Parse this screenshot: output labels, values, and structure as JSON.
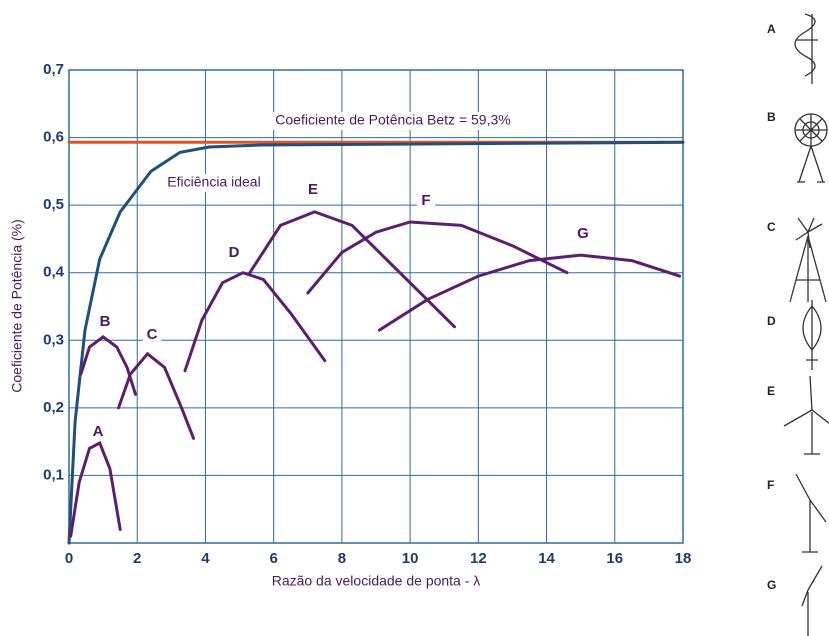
{
  "chart_data": {
    "type": "line",
    "xlabel": "Razão  da velocidade de ponta - λ",
    "ylabel": "Coeficiente de Potência (%)",
    "annotations": [
      "Coeficiente de Potência Betz = 59,3%",
      "Eficiência ideal"
    ],
    "xlim": [
      0,
      18
    ],
    "xticks": [
      0,
      2,
      4,
      6,
      8,
      10,
      12,
      14,
      16,
      18
    ],
    "ylim": [
      0,
      0.7
    ],
    "yticks": [
      {
        "value": 0.1,
        "label": "0,1"
      },
      {
        "value": 0.2,
        "label": "0,2"
      },
      {
        "value": 0.3,
        "label": "0,3"
      },
      {
        "value": 0.4,
        "label": "0,4"
      },
      {
        "value": 0.5,
        "label": "0,5"
      },
      {
        "value": 0.6,
        "label": "0,6"
      },
      {
        "value": 0.7,
        "label": "0,7"
      }
    ],
    "grid": true,
    "series": [
      {
        "color": "#e8531f",
        "x": [
          0,
          18
        ],
        "values": [
          0.593,
          0.593
        ]
      },
      {
        "color": "#1f4f7c",
        "x": [
          0,
          0.18,
          0.47,
          0.9,
          1.5,
          2.4,
          3.25,
          4.1,
          5.6,
          18
        ],
        "values": [
          0,
          0.18,
          0.315,
          0.42,
          0.49,
          0.55,
          0.578,
          0.586,
          0.589,
          0.593
        ]
      },
      {
        "name": "A",
        "color": "#5a1f6e",
        "x": [
          0.05,
          0.3,
          0.6,
          0.9,
          1.2,
          1.5
        ],
        "values": [
          0.01,
          0.09,
          0.14,
          0.148,
          0.11,
          0.02
        ]
      },
      {
        "name": "B",
        "color": "#5a1f6e",
        "x": [
          0.35,
          0.6,
          1.0,
          1.4,
          1.7,
          1.95
        ],
        "values": [
          0.25,
          0.29,
          0.305,
          0.29,
          0.26,
          0.22
        ]
      },
      {
        "name": "C",
        "color": "#5a1f6e",
        "x": [
          1.45,
          1.8,
          2.3,
          2.8,
          3.3,
          3.65
        ],
        "values": [
          0.2,
          0.25,
          0.28,
          0.26,
          0.2,
          0.155
        ]
      },
      {
        "name": "D",
        "color": "#5a1f6e",
        "x": [
          3.4,
          3.9,
          4.5,
          5.1,
          5.7,
          6.5,
          7.5
        ],
        "values": [
          0.255,
          0.33,
          0.385,
          0.4,
          0.39,
          0.34,
          0.27
        ]
      },
      {
        "name": "E",
        "color": "#5a1f6e",
        "x": [
          5.3,
          6.2,
          7.2,
          8.3,
          9.5,
          10.5,
          11.3
        ],
        "values": [
          0.4,
          0.47,
          0.49,
          0.47,
          0.41,
          0.36,
          0.32
        ]
      },
      {
        "name": "F",
        "color": "#5a1f6e",
        "x": [
          7,
          8,
          9,
          10,
          11.5,
          13,
          14.6
        ],
        "values": [
          0.37,
          0.43,
          0.46,
          0.475,
          0.47,
          0.44,
          0.4
        ]
      },
      {
        "name": "G",
        "color": "#5a1f6e",
        "x": [
          9.1,
          10.5,
          12,
          13.5,
          15,
          16.5,
          17.9
        ],
        "values": [
          0.315,
          0.36,
          0.395,
          0.418,
          0.426,
          0.418,
          0.395
        ]
      }
    ]
  }
}
